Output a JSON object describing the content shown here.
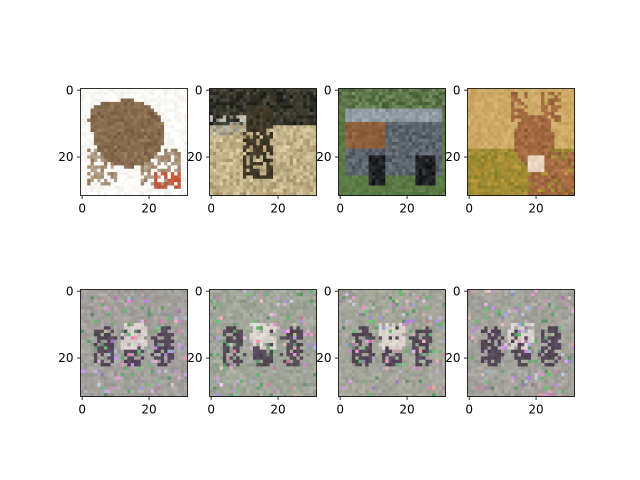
{
  "chart_data": {
    "type": "heatmap",
    "title": "",
    "layout": {
      "rows": 2,
      "cols": 4
    },
    "image_size": [
      32,
      32
    ],
    "xticks": [
      0,
      20
    ],
    "yticks": [
      0,
      20
    ],
    "xlim": [
      -0.5,
      31.5
    ],
    "ylim": [
      31.5,
      -0.5
    ],
    "grid": false,
    "panels": [
      {
        "row": 0,
        "col": 0,
        "content": "frog",
        "kind": "original",
        "xtick_labels": [
          "0",
          "20"
        ],
        "ytick_labels": [
          "0",
          "20"
        ],
        "colors": {
          "bg": "#fbf9f6",
          "main": "#93785a",
          "dark": "#6b5138",
          "accent": "#c55a3c"
        }
      },
      {
        "row": 0,
        "col": 1,
        "content": "deer in field",
        "kind": "original",
        "xtick_labels": [
          "0",
          "20"
        ],
        "ytick_labels": [
          "0",
          "20"
        ],
        "colors": {
          "bg": "#d8cba4",
          "main": "#4a3e2c",
          "dark": "#1d211b",
          "accent": "#a8966c"
        }
      },
      {
        "row": 0,
        "col": 2,
        "content": "vintage car",
        "kind": "original",
        "xtick_labels": [
          "0",
          "20"
        ],
        "ytick_labels": [
          "0",
          "20"
        ],
        "colors": {
          "bg": "#5b7b45",
          "main": "#6d7780",
          "dark": "#2b2f33",
          "accent": "#8a5a38"
        }
      },
      {
        "row": 0,
        "col": 3,
        "content": "deer",
        "kind": "original",
        "xtick_labels": [
          "0",
          "20"
        ],
        "ytick_labels": [
          "0",
          "20"
        ],
        "colors": {
          "bg": "#c9a55f",
          "main": "#b27547",
          "dark": "#5a3a22",
          "accent": "#e8d6c0"
        }
      },
      {
        "row": 1,
        "col": 0,
        "content": "generated noise",
        "kind": "generated",
        "xtick_labels": [
          "0",
          "20"
        ],
        "ytick_labels": [
          "0",
          "20"
        ],
        "colors": {
          "bg": "#9a9a96",
          "main": "#b7b0aa",
          "dark": "#4f4a52",
          "accent": "#d8d2cc"
        }
      },
      {
        "row": 1,
        "col": 1,
        "content": "generated noise",
        "kind": "generated",
        "xtick_labels": [
          "0",
          "20"
        ],
        "ytick_labels": [
          "0",
          "20"
        ],
        "colors": {
          "bg": "#96a093",
          "main": "#b9b4a8",
          "dark": "#4e4c4c",
          "accent": "#dcd6cf"
        }
      },
      {
        "row": 1,
        "col": 2,
        "content": "generated noise",
        "kind": "generated",
        "xtick_labels": [
          "0",
          "20"
        ],
        "ytick_labels": [
          "0",
          "20"
        ],
        "colors": {
          "bg": "#9b9f94",
          "main": "#bab3a7",
          "dark": "#4d4a4d",
          "accent": "#dbd4cc"
        }
      },
      {
        "row": 1,
        "col": 3,
        "content": "generated noise",
        "kind": "generated",
        "xtick_labels": [
          "0",
          "20"
        ],
        "ytick_labels": [
          "0",
          "20"
        ],
        "colors": {
          "bg": "#9a9c95",
          "main": "#b8b2a9",
          "dark": "#4c494d",
          "accent": "#dad3cc"
        }
      }
    ]
  }
}
